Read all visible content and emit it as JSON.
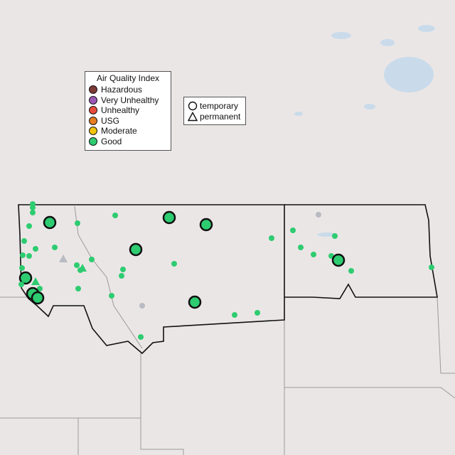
{
  "aqi_legend": {
    "title": "Air Quality Index",
    "items": [
      {
        "label": "Hazardous",
        "color": "#7e3a36"
      },
      {
        "label": "Very Unhealthy",
        "color": "#9b59b6"
      },
      {
        "label": "Unhealthy",
        "color": "#e74c3c"
      },
      {
        "label": "USG",
        "color": "#e67e22"
      },
      {
        "label": "Moderate",
        "color": "#f1c40f"
      },
      {
        "label": "Good",
        "color": "#2ecc71"
      }
    ]
  },
  "type_legend": {
    "items": [
      {
        "label": "temporary",
        "icon": "circle-icon"
      },
      {
        "label": "permanent",
        "icon": "triangle-icon"
      }
    ]
  },
  "colors": {
    "good": "#2ecc71",
    "no_data": "#b8bcc2",
    "background": "#ebe6e6",
    "water": "#c6d9ea"
  }
}
